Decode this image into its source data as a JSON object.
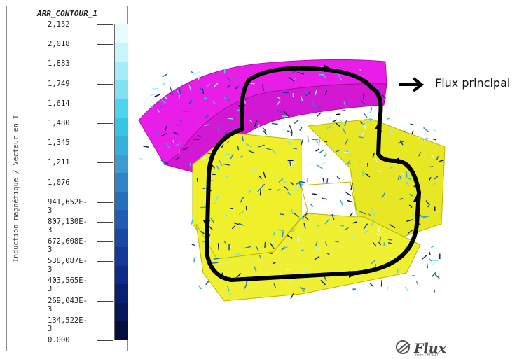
{
  "legend": {
    "title": "ARR_CONTOUR_1",
    "vertical_label": "Induction magnétique / Vecteur en T",
    "values": [
      "2,152",
      "2,018",
      "1,883",
      "1,749",
      "1,614",
      "1,480",
      "1,345",
      "1,211",
      "1,076",
      "941,652E-3",
      "807,130E-3",
      "672,608E-3",
      "538,087E-3",
      "403,565E-3",
      "269,043E-3",
      "134,522E-3",
      "0.000"
    ],
    "colors": [
      "#e8fbff",
      "#c8f4fb",
      "#a6ecf8",
      "#7fe2f2",
      "#4fd5eb",
      "#34c6e2",
      "#33b1d8",
      "#3d9bd0",
      "#2f83c6",
      "#2470bd",
      "#1f5cb5",
      "#1748a6",
      "#12389a",
      "#0f2a86",
      "#0b1f72",
      "#08165c",
      "#050d3c"
    ]
  },
  "annotation": {
    "flux_label": "Flux principal"
  },
  "logo": {
    "name": "Flux",
    "sub": "from CEDRAT"
  },
  "colors": {
    "magnet": "#e81ee8",
    "core": "#f0f02a",
    "flux_path": "#000000"
  }
}
